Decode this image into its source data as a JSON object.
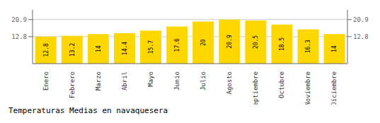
{
  "chart_data": {
    "type": "bar",
    "title": "Temperaturas Medias en navaquesera",
    "categories": [
      "Enero",
      "Febrero",
      "Marzo",
      "Abril",
      "Mayo",
      "Junio",
      "Julio",
      "Agosto",
      "Septiembre",
      "Octubre",
      "Noviembre",
      "Diciembre"
    ],
    "values": [
      12.8,
      13.2,
      14.0,
      14.4,
      15.7,
      17.6,
      20.0,
      20.9,
      20.5,
      18.5,
      16.3,
      14.0
    ],
    "color": "#FFD700",
    "ylim": [
      0,
      25.498
    ],
    "yticks": [
      12.8,
      20.9
    ],
    "grid": true,
    "data_labels": true
  }
}
